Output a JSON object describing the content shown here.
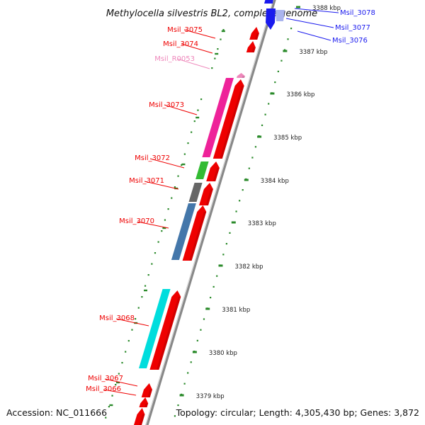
{
  "title": "Methylocella silvestris BL2, complete genome",
  "footer": {
    "accession": "Accession: NC_011666",
    "topology": "Topology: circular; Length: 4,305,430 bp; Genes: 3,872"
  },
  "colors": {
    "forward_gene": "#ee0000",
    "reverse_gene": "#1a1aee",
    "rna_gene": "#ee88bb",
    "backbone": "#888888",
    "tick": "#2a8a2a",
    "cog_magenta": "#ee2299",
    "cog_green": "#33bb33",
    "cog_gray": "#666666",
    "cog_steelblue": "#4477aa",
    "cog_cyan": "#00dddd"
  },
  "scale_labels": [
    "3388 kbp",
    "3387 kbp",
    "3386 kbp",
    "3385 kbp",
    "3384 kbp",
    "3383 kbp",
    "3382 kbp",
    "3381 kbp",
    "3380 kbp",
    "3379 kbp"
  ],
  "genes": [
    {
      "label": "Msil_3078",
      "strand": "reverse",
      "color": "#1a1aee"
    },
    {
      "label": "Msil_3077",
      "strand": "reverse",
      "color": "#1a1aee"
    },
    {
      "label": "Msil_3076",
      "strand": "reverse",
      "color": "#1a1aee"
    },
    {
      "label": "Msil_3075",
      "strand": "forward",
      "color": "#ee0000"
    },
    {
      "label": "Msil_3074",
      "strand": "forward",
      "color": "#ee0000"
    },
    {
      "label": "Msil_R0053",
      "strand": "forward",
      "color": "#ee88bb"
    },
    {
      "label": "Msil_3073",
      "strand": "forward",
      "color": "#ee0000"
    },
    {
      "label": "Msil_3072",
      "strand": "forward",
      "color": "#ee0000"
    },
    {
      "label": "Msil_3071",
      "strand": "forward",
      "color": "#ee0000"
    },
    {
      "label": "Msil_3070",
      "strand": "forward",
      "color": "#ee0000"
    },
    {
      "label": "Msil_3068",
      "strand": "forward",
      "color": "#ee0000"
    },
    {
      "label": "Msil_3067",
      "strand": "forward",
      "color": "#ee0000"
    },
    {
      "label": "Msil_3066",
      "strand": "forward",
      "color": "#ee0000"
    }
  ]
}
